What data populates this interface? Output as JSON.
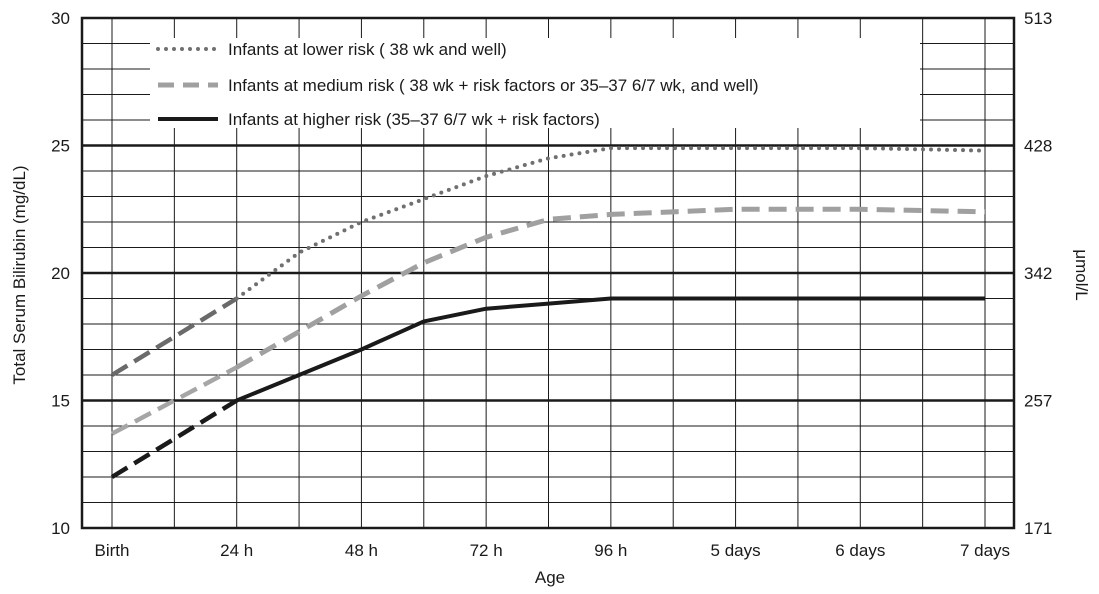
{
  "chart_data": {
    "type": "line",
    "xlabel": "Age",
    "ylabel": "Total Serum Bilirubin (mg/dL)",
    "y2label": "μmol/L",
    "x_tick_labels": [
      "Birth",
      "24 h",
      "48 h",
      "72 h",
      "96 h",
      "5 days",
      "6 days",
      "7 days"
    ],
    "y_ticks": [
      "10",
      "15",
      "20",
      "25",
      "30"
    ],
    "y2_ticks": [
      "171",
      "257",
      "342",
      "428",
      "513"
    ],
    "ylim": [
      10,
      30
    ],
    "grid": true,
    "legend_position": "top-left",
    "series": [
      {
        "name": "Infants at lower risk ( 38 wk and well)",
        "style": "dotted",
        "color": "#707070",
        "dashed_until_hours": 24,
        "points": [
          [
            0,
            16
          ],
          [
            12,
            17.5
          ],
          [
            24,
            19
          ],
          [
            36,
            20.8
          ],
          [
            48,
            22
          ],
          [
            60,
            22.9
          ],
          [
            72,
            23.8
          ],
          [
            84,
            24.5
          ],
          [
            96,
            24.9
          ],
          [
            120,
            24.9
          ],
          [
            144,
            24.9
          ],
          [
            168,
            24.8
          ]
        ]
      },
      {
        "name": "Infants at medium risk ( 38 wk + risk factors or 35–37 6/7 wk, and well)",
        "style": "dashed",
        "color": "#a0a0a0",
        "dashed_until_hours": 24,
        "points": [
          [
            0,
            13.7
          ],
          [
            12,
            15
          ],
          [
            24,
            16.3
          ],
          [
            36,
            17.7
          ],
          [
            48,
            19.1
          ],
          [
            60,
            20.4
          ],
          [
            72,
            21.4
          ],
          [
            84,
            22.1
          ],
          [
            96,
            22.3
          ],
          [
            120,
            22.5
          ],
          [
            144,
            22.5
          ],
          [
            168,
            22.4
          ]
        ]
      },
      {
        "name": "Infants at higher risk (35–37 6/7 wk + risk factors)",
        "style": "solid",
        "color": "#1a1a1a",
        "dashed_until_hours": 24,
        "points": [
          [
            0,
            12
          ],
          [
            12,
            13.5
          ],
          [
            24,
            15
          ],
          [
            36,
            16
          ],
          [
            48,
            17
          ],
          [
            60,
            18.1
          ],
          [
            72,
            18.6
          ],
          [
            84,
            18.8
          ],
          [
            96,
            19
          ],
          [
            120,
            19
          ],
          [
            144,
            19
          ],
          [
            168,
            19
          ]
        ]
      }
    ]
  }
}
